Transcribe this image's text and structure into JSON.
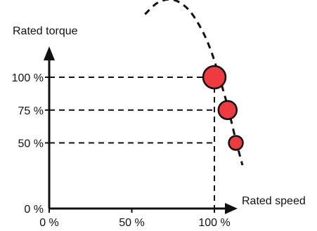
{
  "chart_data": {
    "type": "scatter",
    "title": "",
    "xlabel": "Rated speed",
    "ylabel": "Rated torque",
    "xlim": [
      0,
      100
    ],
    "ylim": [
      0,
      100
    ],
    "x_ticks": [
      {
        "value": 0,
        "label": "0 %"
      },
      {
        "value": 50,
        "label": "50 %"
      },
      {
        "value": 100,
        "label": "100 %"
      }
    ],
    "y_ticks": [
      {
        "value": 0,
        "label": "0 %"
      },
      {
        "value": 50,
        "label": "50 %"
      },
      {
        "value": 75,
        "label": "75 %"
      },
      {
        "value": 100,
        "label": "100 %"
      }
    ],
    "points": [
      {
        "x": 100,
        "y": 100
      },
      {
        "x": 108,
        "y": 75
      },
      {
        "x": 113,
        "y": 50
      }
    ],
    "limit_curve": [
      {
        "x": 58,
        "y": 148
      },
      {
        "x": 66,
        "y": 157
      },
      {
        "x": 75,
        "y": 159
      },
      {
        "x": 84,
        "y": 152
      },
      {
        "x": 92,
        "y": 137
      },
      {
        "x": 98,
        "y": 120
      },
      {
        "x": 103,
        "y": 100
      },
      {
        "x": 108,
        "y": 78
      },
      {
        "x": 113,
        "y": 52
      },
      {
        "x": 117,
        "y": 33
      }
    ],
    "guide_lines": true,
    "grid": false,
    "colors": {
      "marker_fill": "#ef3b3f",
      "marker_stroke": "#111111",
      "axis": "#111111"
    }
  }
}
